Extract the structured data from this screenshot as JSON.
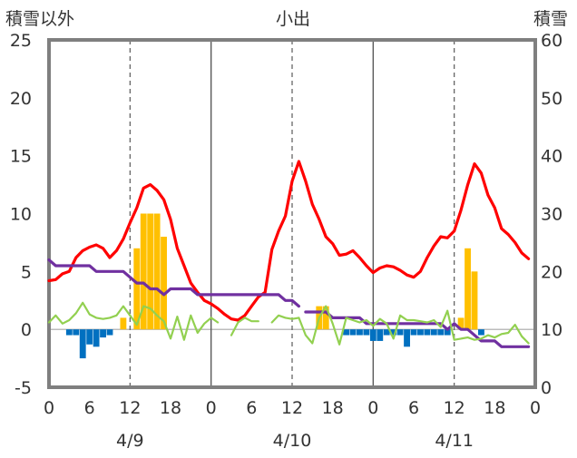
{
  "labels": {
    "left_axis_title": "積雪以外",
    "center_title": "小出",
    "right_axis_title": "積雪"
  },
  "colors": {
    "temperature": "#ff0000",
    "snow_depth": "#7030a0",
    "wind": "#92d050",
    "precip": "#ffc000",
    "sunshine_negative": "#0070c0",
    "frame": "#7f7f7f"
  },
  "chart_data": {
    "type": "line",
    "title": "小出",
    "y_left": {
      "label": "積雪以外",
      "range": [
        -5,
        25
      ],
      "ticks": [
        "-5",
        "0",
        "5",
        "10",
        "15",
        "20",
        "25"
      ]
    },
    "y_right": {
      "label": "積雪",
      "range": [
        0,
        60
      ],
      "ticks": [
        "0",
        "10",
        "20",
        "30",
        "40",
        "50",
        "60"
      ]
    },
    "x": {
      "range_hours": [
        0,
        72
      ],
      "tick_labels": [
        "0",
        "6",
        "12",
        "18",
        "0",
        "6",
        "12",
        "18",
        "0",
        "6",
        "12",
        "18",
        "0"
      ],
      "day_labels": [
        "4/9",
        "4/10",
        "4/11"
      ]
    },
    "grid": "vertical dashed lines at 12:00, solid lines at 0:00",
    "series": [
      {
        "kind": "line",
        "axis": "left",
        "color": "#ff0000",
        "x": [
          0,
          1,
          2,
          3,
          4,
          5,
          6,
          7,
          8,
          9,
          10,
          11,
          12,
          13,
          14,
          15,
          16,
          17,
          18,
          19,
          20,
          21,
          22,
          23,
          24,
          25,
          26,
          27,
          28,
          29,
          30,
          31,
          32,
          33,
          34,
          35,
          36,
          37,
          38,
          39,
          40,
          41,
          42,
          43,
          44,
          45,
          46,
          47,
          48,
          49,
          50,
          51,
          52,
          53,
          54,
          55,
          56,
          57,
          58,
          59,
          60,
          61,
          62,
          63,
          64,
          65,
          66,
          67,
          68,
          69,
          70,
          71
        ],
        "y": [
          4.2,
          4.3,
          4.8,
          5.0,
          6.2,
          6.8,
          7.1,
          7.3,
          7.0,
          6.2,
          6.8,
          7.8,
          9.2,
          10.5,
          12.2,
          12.5,
          12.0,
          11.2,
          9.5,
          7.0,
          5.5,
          4.0,
          3.2,
          2.5,
          2.2,
          1.8,
          1.3,
          0.9,
          0.8,
          1.2,
          2.0,
          2.8,
          3.2,
          6.9,
          8.5,
          9.8,
          12.8,
          14.5,
          12.8,
          10.8,
          9.5,
          8.0,
          7.4,
          6.4,
          6.5,
          6.8,
          6.2,
          5.5,
          4.9,
          5.3,
          5.5,
          5.4,
          5.1,
          4.7,
          4.5,
          5.0,
          6.2,
          7.2,
          8.0,
          7.9,
          8.5,
          10.3,
          12.5,
          14.3,
          13.5,
          11.6,
          10.5,
          8.7,
          8.2,
          7.5,
          6.6,
          6.1
        ]
      },
      {
        "kind": "line",
        "axis": "right",
        "color": "#7030a0",
        "segments": [
          {
            "x": [
              0,
              1,
              2,
              3,
              4,
              5,
              6,
              7,
              8,
              9,
              10,
              11,
              12,
              13,
              14,
              15,
              16,
              17,
              18,
              19,
              20,
              21,
              22,
              23,
              24,
              25,
              26,
              27,
              28,
              29,
              30,
              31,
              32,
              33,
              34,
              35,
              36,
              37
            ],
            "y": [
              22,
              21,
              21,
              21,
              21,
              21,
              21,
              20,
              20,
              20,
              20,
              20,
              19,
              18,
              18,
              17,
              17,
              16,
              17,
              17,
              17,
              17,
              16,
              16,
              16,
              16,
              16,
              16,
              16,
              16,
              16,
              16,
              16,
              16,
              16,
              15,
              15,
              14
            ]
          },
          {
            "x": [
              38,
              39,
              40,
              41,
              42,
              43,
              44,
              45,
              46,
              47,
              48,
              49,
              50,
              51,
              52,
              53,
              54,
              55,
              56,
              57,
              58,
              59,
              60,
              61,
              62,
              63,
              64,
              65,
              66,
              67,
              68,
              69,
              70,
              71
            ],
            "y": [
              13,
              13,
              13,
              13,
              12,
              12,
              12,
              12,
              12,
              11,
              11,
              11,
              11,
              11,
              11,
              11,
              11,
              11,
              11,
              11,
              11,
              10,
              11,
              10,
              10,
              9,
              8,
              8,
              8,
              7,
              7,
              7,
              7,
              7
            ]
          }
        ]
      },
      {
        "kind": "line",
        "axis": "left",
        "color": "#92d050",
        "segments": [
          {
            "x": [
              0,
              1,
              2,
              3,
              4,
              5,
              6,
              7,
              8,
              9,
              10,
              11,
              12,
              13,
              14,
              15,
              16,
              17,
              18,
              19,
              20,
              21,
              22,
              23,
              24,
              25
            ],
            "y": [
              0.6,
              1.2,
              0.5,
              0.8,
              1.4,
              2.3,
              1.3,
              1.0,
              0.9,
              1.0,
              1.2,
              2.0,
              1.2,
              0.4,
              2.0,
              1.8,
              1.2,
              0.7,
              -0.8,
              1.1,
              -0.9,
              1.2,
              -0.3,
              0.5,
              1.0,
              0.6
            ]
          },
          {
            "x": [
              27,
              28,
              29,
              30,
              31
            ],
            "y": [
              -0.5,
              0.6,
              1.0,
              0.7,
              0.7
            ]
          },
          {
            "x": [
              33,
              34,
              35,
              36,
              37,
              38,
              39,
              40,
              41,
              42,
              43,
              44,
              45,
              46,
              47,
              48,
              49,
              50,
              51,
              52,
              53,
              54,
              55,
              56,
              57,
              58,
              59,
              60,
              61,
              62,
              63,
              64,
              65,
              66,
              67,
              68,
              69,
              70,
              71
            ],
            "y": [
              0.6,
              1.2,
              1.0,
              0.9,
              1.0,
              -0.5,
              -1.2,
              1.0,
              2.0,
              0.5,
              -1.3,
              1.0,
              0.8,
              0.6,
              0.8,
              0.3,
              0.9,
              0.5,
              -0.8,
              1.2,
              0.8,
              0.8,
              0.7,
              0.6,
              0.8,
              0.2,
              1.6,
              -0.9,
              -0.8,
              -0.7,
              -0.9,
              -0.8,
              -0.5,
              -0.7,
              -0.4,
              -0.3,
              0.4,
              -0.6,
              -1.2
            ]
          }
        ]
      },
      {
        "kind": "bar",
        "axis": "left",
        "color": "#ffc000",
        "x": [
          11,
          13,
          14,
          15,
          16,
          17,
          40,
          41,
          61,
          62,
          63
        ],
        "y": [
          1.0,
          7.0,
          10.0,
          10.0,
          10.0,
          8.0,
          2.0,
          2.0,
          1.0,
          7.0,
          5.0
        ]
      },
      {
        "kind": "bar",
        "axis": "left",
        "color": "#0070c0",
        "x": [
          3,
          4,
          5,
          6,
          7,
          8,
          9,
          44,
          45,
          46,
          47,
          48,
          49,
          50,
          51,
          52,
          53,
          54,
          55,
          56,
          57,
          58,
          59,
          64
        ],
        "y": [
          -0.5,
          -0.5,
          -2.5,
          -1.3,
          -1.5,
          -0.7,
          -0.5,
          -0.5,
          -0.5,
          -0.5,
          -0.5,
          -1.0,
          -1.0,
          -0.5,
          -0.5,
          -0.5,
          -1.5,
          -0.5,
          -0.5,
          -0.5,
          -0.5,
          -0.5,
          -0.5,
          -0.5
        ]
      }
    ]
  }
}
